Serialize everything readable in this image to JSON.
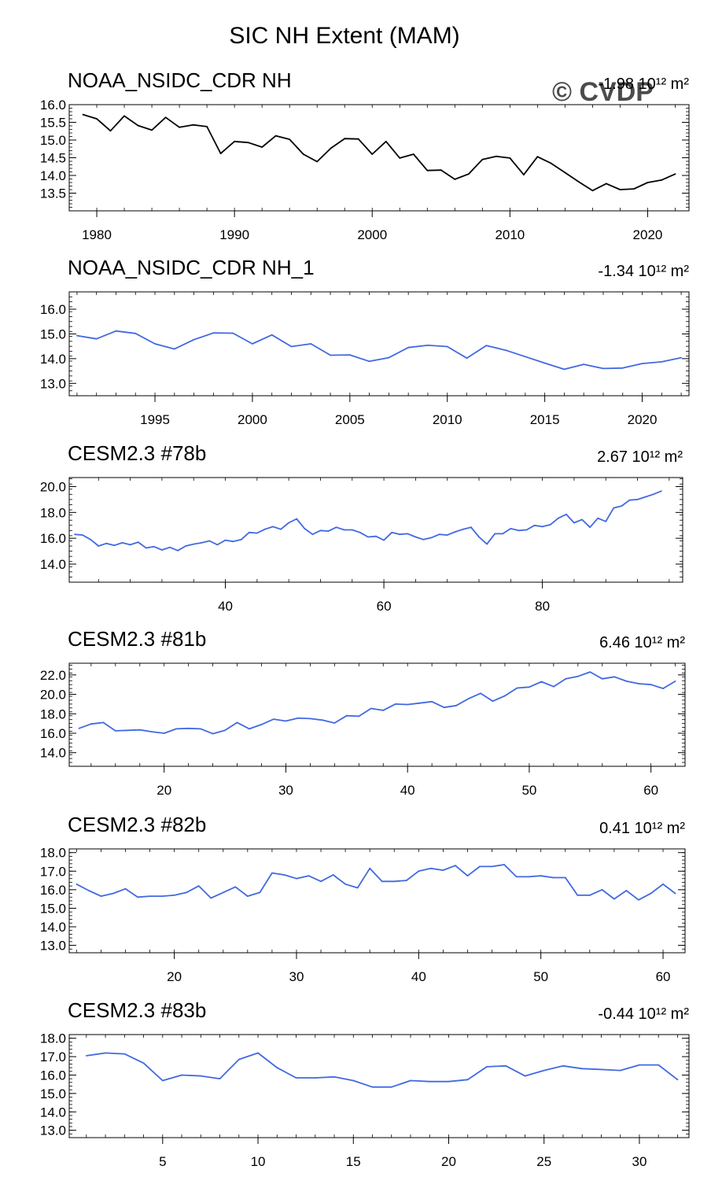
{
  "page": {
    "title": "SIC NH Extent (MAM)",
    "watermark": "© CVDP"
  },
  "colors": {
    "obs": "#000000",
    "model": "#4169e1",
    "watermark": "#d3d3d3"
  },
  "chart_data": [
    {
      "type": "line",
      "title": "NOAA_NSIDC_CDR NH",
      "trend": "-1.98 10¹² m²",
      "color": "#000000",
      "xlim": [
        1978,
        2023
      ],
      "ylim": [
        13.0,
        16.0
      ],
      "yticks": [
        13.5,
        14.0,
        14.5,
        15.0,
        15.5,
        16.0
      ],
      "ytick_labels": [
        "13.5",
        "14.0",
        "14.5",
        "15.0",
        "15.5",
        "16.0"
      ],
      "xticks": [
        1980,
        1990,
        2000,
        2010,
        2020
      ],
      "xtick_labels": [
        "1980",
        "1990",
        "2000",
        "2010",
        "2020"
      ],
      "x_start": 1979,
      "values": [
        15.72,
        15.6,
        15.26,
        15.68,
        15.41,
        15.28,
        15.64,
        15.36,
        15.43,
        15.38,
        14.62,
        14.96,
        14.93,
        14.8,
        15.12,
        15.02,
        14.6,
        14.39,
        14.77,
        15.04,
        15.03,
        14.6,
        14.96,
        14.49,
        14.6,
        14.14,
        14.15,
        13.89,
        14.04,
        14.45,
        14.54,
        14.49,
        14.02,
        14.53,
        14.34,
        14.08,
        13.82,
        13.57,
        13.77,
        13.6,
        13.62,
        13.8,
        13.87,
        14.04
      ]
    },
    {
      "type": "line",
      "title": "NOAA_NSIDC_CDR NH_1",
      "trend": "-1.34 10¹² m²",
      "color": "#4169e1",
      "xlim": [
        1990.6,
        2022.4
      ],
      "ylim": [
        12.5,
        16.7
      ],
      "yticks": [
        13.0,
        14.0,
        15.0,
        16.0
      ],
      "ytick_labels": [
        "13.0",
        "14.0",
        "15.0",
        "16.0"
      ],
      "xticks": [
        1995,
        2000,
        2005,
        2010,
        2015,
        2020
      ],
      "xtick_labels": [
        "1995",
        "2000",
        "2005",
        "2010",
        "2015",
        "2020"
      ],
      "x_start": 1991,
      "values": [
        14.93,
        14.8,
        15.12,
        15.02,
        14.6,
        14.39,
        14.77,
        15.04,
        15.03,
        14.6,
        14.96,
        14.49,
        14.6,
        14.14,
        14.15,
        13.89,
        14.04,
        14.45,
        14.54,
        14.49,
        14.02,
        14.53,
        14.34,
        14.08,
        13.82,
        13.57,
        13.77,
        13.6,
        13.62,
        13.8,
        13.87,
        14.04
      ]
    },
    {
      "type": "line",
      "title": "CESM2.3 #78b",
      "trend": "2.67 10¹² m²",
      "color": "#4169e1",
      "xlim": [
        20.3,
        97.7
      ],
      "ylim": [
        12.6,
        20.7
      ],
      "yticks": [
        14.0,
        16.0,
        18.0,
        20.0
      ],
      "ytick_labels": [
        "14.0",
        "16.0",
        "18.0",
        "20.0"
      ],
      "xticks": [
        40,
        60,
        80
      ],
      "xtick_labels": [
        "40",
        "60",
        "80"
      ],
      "x_start": 21,
      "values": [
        16.3,
        16.25,
        15.9,
        15.4,
        15.6,
        15.45,
        15.65,
        15.5,
        15.7,
        15.25,
        15.35,
        15.1,
        15.3,
        15.05,
        15.4,
        15.55,
        15.65,
        15.8,
        15.5,
        15.85,
        15.75,
        15.9,
        16.45,
        16.4,
        16.7,
        16.9,
        16.7,
        17.2,
        17.5,
        16.75,
        16.3,
        16.6,
        16.55,
        16.85,
        16.65,
        16.65,
        16.45,
        16.1,
        16.15,
        15.85,
        16.45,
        16.3,
        16.35,
        16.1,
        15.9,
        16.05,
        16.3,
        16.25,
        16.5,
        16.7,
        16.85,
        16.1,
        15.55,
        16.35,
        16.35,
        16.75,
        16.6,
        16.65,
        17.0,
        16.9,
        17.05,
        17.55,
        17.85,
        17.2,
        17.45,
        16.85,
        17.55,
        17.3,
        18.35,
        18.5,
        18.95,
        19.0,
        19.2,
        19.4,
        19.65
      ]
    },
    {
      "type": "line",
      "title": "CESM2.3 #81b",
      "trend": "6.46 10¹² m²",
      "color": "#4169e1",
      "xlim": [
        12.2,
        62.8
      ],
      "ylim": [
        12.6,
        23.2
      ],
      "yticks": [
        14.0,
        16.0,
        18.0,
        20.0,
        22.0
      ],
      "ytick_labels": [
        "14.0",
        "16.0",
        "18.0",
        "20.0",
        "22.0"
      ],
      "xticks": [
        20,
        30,
        40,
        50,
        60
      ],
      "xtick_labels": [
        "20",
        "30",
        "40",
        "50",
        "60"
      ],
      "x_start": 13,
      "values": [
        16.5,
        16.95,
        17.1,
        16.25,
        16.3,
        16.35,
        16.15,
        16.0,
        16.45,
        16.5,
        16.45,
        15.95,
        16.3,
        17.1,
        16.45,
        16.9,
        17.45,
        17.25,
        17.55,
        17.5,
        17.35,
        17.05,
        17.8,
        17.75,
        18.55,
        18.35,
        19.0,
        18.95,
        19.1,
        19.25,
        18.65,
        18.85,
        19.55,
        20.1,
        19.3,
        19.85,
        20.65,
        20.75,
        21.3,
        20.8,
        21.6,
        21.85,
        22.3,
        21.6,
        21.8,
        21.35,
        21.1,
        21.0,
        20.6,
        21.35
      ]
    },
    {
      "type": "line",
      "title": "CESM2.3 #82b",
      "trend": "0.41 10¹² m²",
      "color": "#4169e1",
      "xlim": [
        11.4,
        61.8
      ],
      "ylim": [
        12.6,
        18.2
      ],
      "yticks": [
        13.0,
        14.0,
        15.0,
        16.0,
        17.0,
        18.0
      ],
      "ytick_labels": [
        "13.0",
        "14.0",
        "15.0",
        "16.0",
        "17.0",
        "18.0"
      ],
      "xticks": [
        20,
        30,
        40,
        50,
        60
      ],
      "xtick_labels": [
        "20",
        "30",
        "40",
        "50",
        "60"
      ],
      "x_start": 12,
      "values": [
        16.3,
        15.95,
        15.65,
        15.8,
        16.05,
        15.6,
        15.65,
        15.65,
        15.7,
        15.85,
        16.2,
        15.55,
        15.85,
        16.15,
        15.65,
        15.85,
        16.9,
        16.8,
        16.6,
        16.75,
        16.45,
        16.8,
        16.3,
        16.1,
        17.15,
        16.45,
        16.45,
        16.5,
        17.0,
        17.15,
        17.05,
        17.3,
        16.75,
        17.25,
        17.25,
        17.35,
        16.7,
        16.7,
        16.75,
        16.65,
        16.65,
        15.7,
        15.7,
        16.0,
        15.5,
        15.95,
        15.45,
        15.8,
        16.3,
        15.8
      ]
    },
    {
      "type": "line",
      "title": "CESM2.3 #83b",
      "trend": "-0.44 10¹² m²",
      "color": "#4169e1",
      "xlim": [
        0.1,
        32.6
      ],
      "ylim": [
        12.6,
        18.2
      ],
      "yticks": [
        13.0,
        14.0,
        15.0,
        16.0,
        17.0,
        18.0
      ],
      "ytick_labels": [
        "13.0",
        "14.0",
        "15.0",
        "16.0",
        "17.0",
        "18.0"
      ],
      "xticks": [
        5,
        10,
        15,
        20,
        25,
        30
      ],
      "xtick_labels": [
        "5",
        "10",
        "15",
        "20",
        "25",
        "30"
      ],
      "x_start": 1,
      "values": [
        17.05,
        17.2,
        17.15,
        16.65,
        15.7,
        16.0,
        15.95,
        15.8,
        16.85,
        17.2,
        16.4,
        15.85,
        15.85,
        15.9,
        15.7,
        15.35,
        15.35,
        15.7,
        15.65,
        15.65,
        15.75,
        16.45,
        16.5,
        15.95,
        16.25,
        16.5,
        16.35,
        16.3,
        16.25,
        16.55,
        16.55,
        15.75
      ]
    }
  ]
}
